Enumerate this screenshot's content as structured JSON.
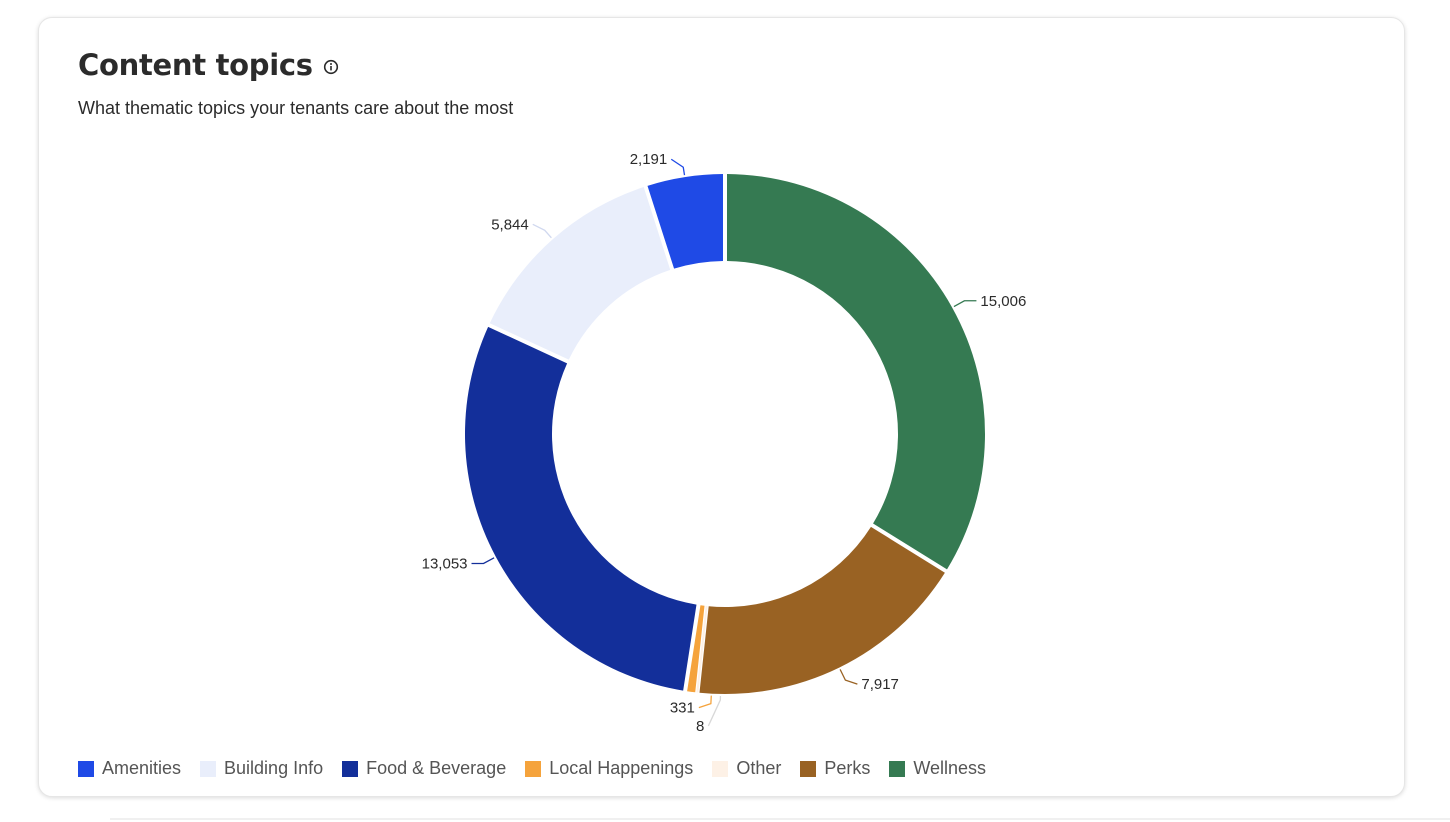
{
  "card": {
    "title": "Content topics",
    "subtitle": "What thematic topics your tenants care about the most",
    "info_icon": "info-circle-icon"
  },
  "chart_data": {
    "type": "pie",
    "donut": true,
    "categories": [
      "Amenities",
      "Building Info",
      "Food & Beverage",
      "Local Happenings",
      "Other",
      "Perks",
      "Wellness"
    ],
    "values": [
      2191,
      5844,
      13053,
      331,
      8,
      7917,
      15006
    ],
    "value_labels": [
      "2,191",
      "5,844",
      "13,053",
      "331",
      "8",
      "7,917",
      "15,006"
    ],
    "colors": [
      "#1f4ae6",
      "#e9eefb",
      "#132f9a",
      "#f5a33c",
      "#fdf1e6",
      "#996223",
      "#357a52"
    ],
    "slice_order": [
      "Wellness",
      "Perks",
      "Other",
      "Local Happenings",
      "Food & Beverage",
      "Building Info",
      "Amenities"
    ],
    "legend_position": "bottom-left"
  }
}
